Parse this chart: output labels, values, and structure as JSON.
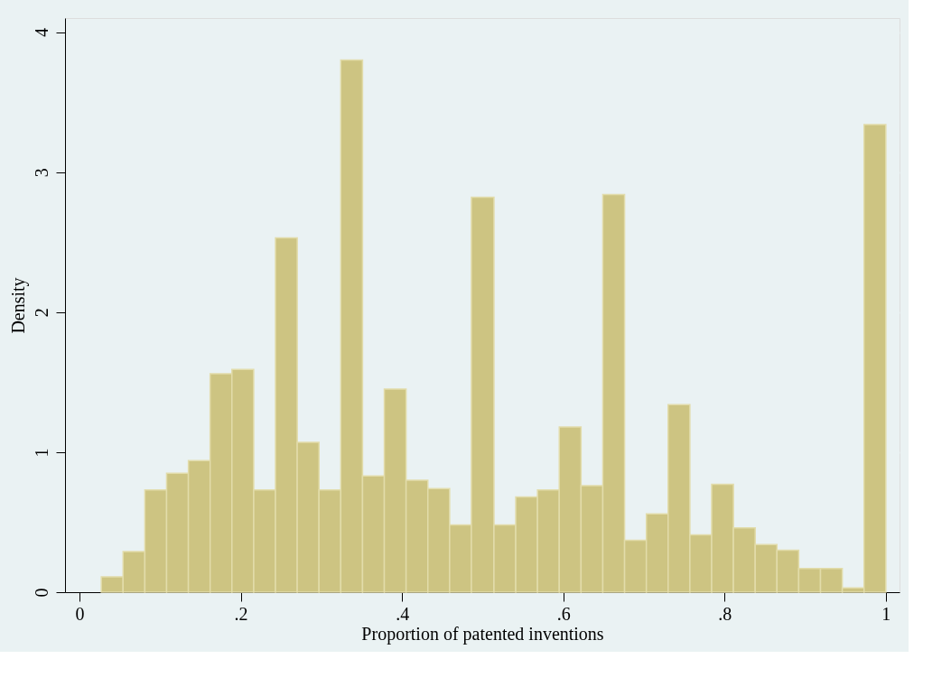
{
  "chart_data": {
    "type": "histogram",
    "xlabel": "Proportion of patented inventions",
    "ylabel": "Density",
    "bins": [
      0.027,
      0.054,
      0.081,
      0.108,
      0.135,
      0.162,
      0.189,
      0.216,
      0.243,
      0.27,
      0.297,
      0.324,
      0.351,
      0.378,
      0.405,
      0.432,
      0.459,
      0.486,
      0.514,
      0.541,
      0.568,
      0.595,
      0.622,
      0.649,
      0.676,
      0.703,
      0.73,
      0.757,
      0.784,
      0.811,
      0.838,
      0.865,
      0.892,
      0.919,
      0.946,
      0.973,
      1.0
    ],
    "values": [
      0.11,
      0.29,
      0.73,
      0.85,
      0.94,
      1.56,
      1.59,
      0.73,
      2.53,
      1.07,
      0.73,
      3.8,
      0.83,
      1.45,
      0.8,
      0.74,
      0.48,
      2.82,
      0.48,
      0.68,
      0.73,
      1.18,
      0.76,
      2.84,
      0.37,
      0.56,
      1.34,
      0.41,
      0.77,
      0.46,
      0.34,
      0.3,
      0.17,
      0.17,
      0.03,
      3.34
    ],
    "color": "#cdc482",
    "xlim": [
      -0.018,
      1.017
    ],
    "xticks": [
      0,
      {
        "value": 0.2,
        "label": ".2"
      },
      {
        "value": 0.4,
        "label": ".4"
      },
      {
        "value": 0.6,
        "label": ".6"
      },
      {
        "value": 0.8,
        "label": ".8"
      },
      1
    ],
    "ylim": [
      0,
      4.1
    ],
    "yticks": [
      0,
      1,
      2,
      3,
      4
    ],
    "grid": "y"
  }
}
